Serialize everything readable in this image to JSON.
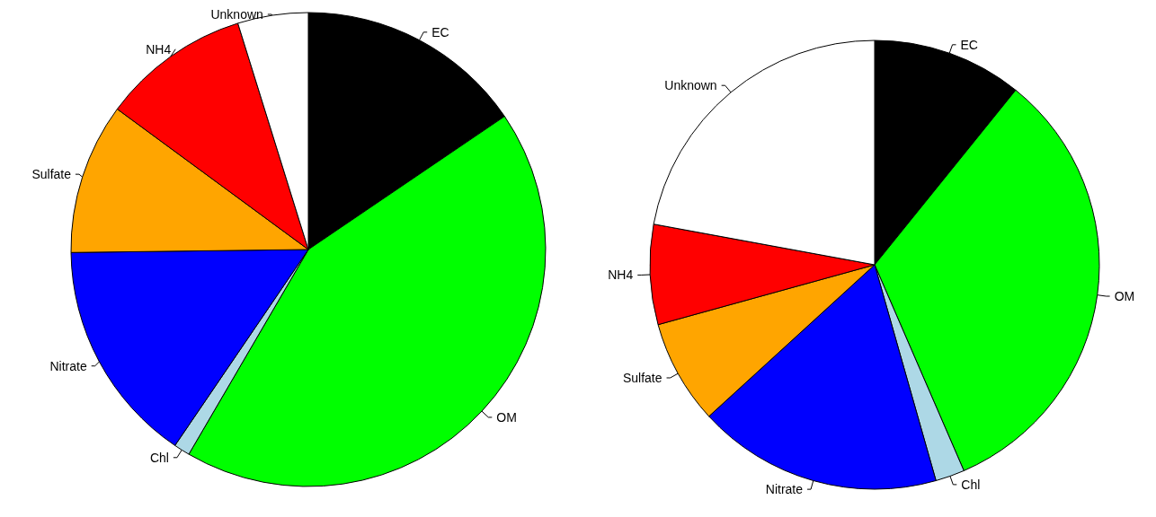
{
  "chart_data": [
    {
      "type": "pie",
      "categories": [
        "EC",
        "OM",
        "Chl",
        "Nitrate",
        "Sulfate",
        "NH4",
        "Unknown"
      ],
      "values": [
        15.5,
        42.9,
        1.1,
        15.3,
        10.3,
        10.1,
        4.8
      ],
      "colors": [
        "#000000",
        "#00ff00",
        "#add8e6",
        "#0000ff",
        "#ffa500",
        "#ff0000",
        "#ffffff"
      ]
    },
    {
      "type": "pie",
      "categories": [
        "EC",
        "OM",
        "Chl",
        "Nitrate",
        "Sulfate",
        "NH4",
        "Unknown"
      ],
      "values": [
        10.8,
        32.7,
        2.1,
        17.6,
        7.5,
        7.2,
        22.1
      ],
      "colors": [
        "#000000",
        "#00ff00",
        "#add8e6",
        "#0000ff",
        "#ffa500",
        "#ff0000",
        "#ffffff"
      ]
    }
  ]
}
